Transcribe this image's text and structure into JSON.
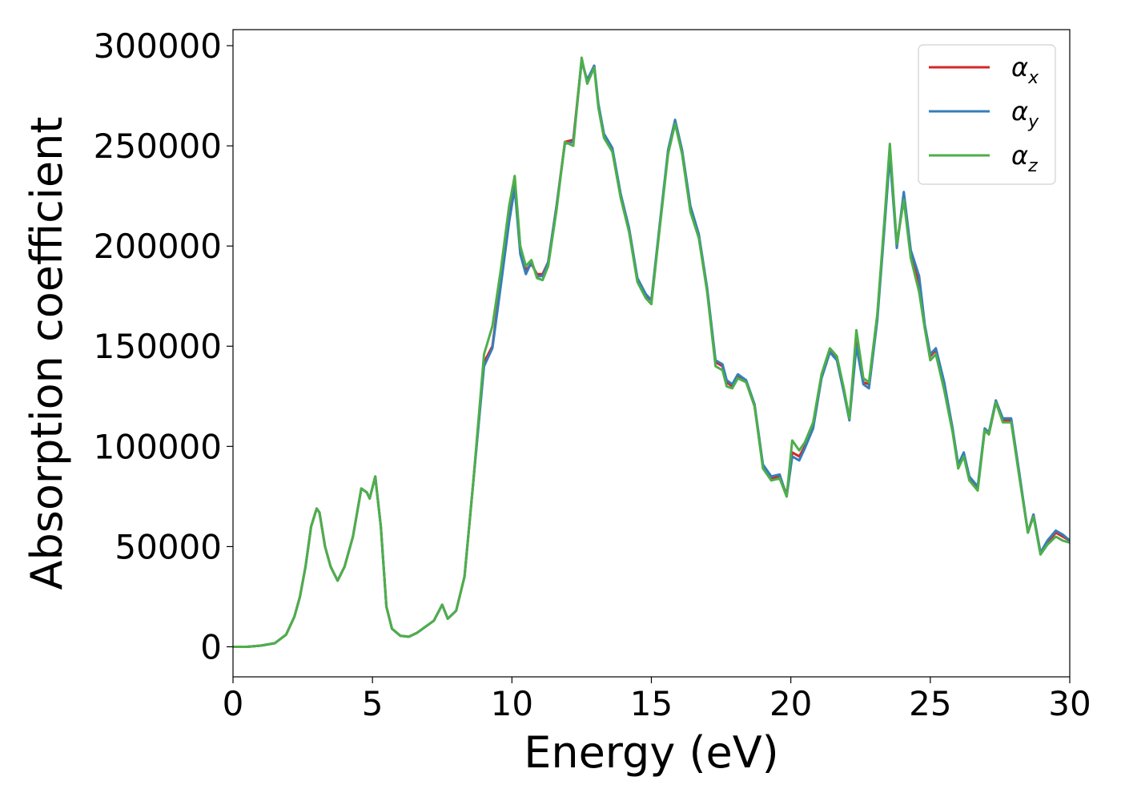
{
  "chart_data": {
    "type": "line",
    "xlabel": "Energy (eV)",
    "ylabel": "Absorption coefficient",
    "xlim": [
      0,
      30
    ],
    "ylim": [
      -15000,
      308000
    ],
    "xticks": [
      0,
      5,
      10,
      15,
      20,
      25,
      30
    ],
    "yticks": [
      0,
      50000,
      100000,
      150000,
      200000,
      250000,
      300000
    ],
    "grid": false,
    "legend_position": "top-right",
    "x": [
      0,
      0.5,
      1.0,
      1.5,
      1.9,
      2.2,
      2.4,
      2.6,
      2.8,
      3.0,
      3.1,
      3.3,
      3.5,
      3.75,
      4.0,
      4.3,
      4.6,
      4.8,
      4.9,
      5.1,
      5.3,
      5.5,
      5.7,
      6.0,
      6.3,
      6.6,
      6.9,
      7.2,
      7.5,
      7.7,
      8.0,
      8.3,
      8.6,
      9.0,
      9.3,
      9.6,
      9.9,
      10.1,
      10.3,
      10.5,
      10.7,
      10.9,
      11.1,
      11.3,
      11.6,
      11.9,
      12.2,
      12.5,
      12.7,
      12.95,
      13.1,
      13.3,
      13.6,
      13.9,
      14.2,
      14.5,
      14.8,
      15.0,
      15.3,
      15.6,
      15.85,
      16.1,
      16.4,
      16.7,
      17.0,
      17.3,
      17.55,
      17.7,
      17.9,
      18.1,
      18.4,
      18.7,
      19.0,
      19.3,
      19.6,
      19.85,
      20.05,
      20.3,
      20.5,
      20.8,
      21.1,
      21.4,
      21.65,
      21.9,
      22.1,
      22.35,
      22.6,
      22.8,
      23.1,
      23.35,
      23.55,
      23.8,
      24.05,
      24.3,
      24.6,
      24.8,
      25.0,
      25.2,
      25.5,
      25.8,
      26.0,
      26.2,
      26.4,
      26.7,
      26.95,
      27.1,
      27.35,
      27.6,
      27.9,
      28.2,
      28.5,
      28.7,
      28.95,
      29.2,
      29.5,
      29.75,
      30.0
    ],
    "series": [
      {
        "name": "α_x",
        "color": "#d62728",
        "values": [
          0,
          0,
          600,
          1800,
          6000,
          15000,
          25000,
          40000,
          60000,
          69000,
          67000,
          50000,
          40000,
          33000,
          40000,
          55000,
          79000,
          77000,
          74000,
          85000,
          60000,
          20000,
          9000,
          5500,
          5000,
          7000,
          10000,
          13000,
          21000,
          14000,
          18000,
          35000,
          80000,
          142000,
          150000,
          182000,
          215000,
          232000,
          198000,
          188000,
          191000,
          186000,
          186000,
          192000,
          220000,
          252000,
          253000,
          293000,
          282000,
          290000,
          270000,
          255000,
          248000,
          225000,
          208000,
          183000,
          175000,
          173000,
          210000,
          247000,
          262000,
          247000,
          218000,
          205000,
          178000,
          142000,
          140000,
          132000,
          130000,
          135000,
          132000,
          120000,
          90000,
          84000,
          85000,
          76000,
          97000,
          95000,
          100000,
          110000,
          135000,
          148000,
          144000,
          128000,
          114000,
          152000,
          132000,
          131000,
          165000,
          210000,
          248000,
          200000,
          225000,
          196000,
          182000,
          160000,
          145000,
          148000,
          130000,
          108000,
          90000,
          96000,
          84000,
          79000,
          108000,
          106000,
          122000,
          113000,
          113000,
          85000,
          57000,
          66000,
          47000,
          52000,
          57000,
          55000,
          53000
        ]
      },
      {
        "name": "α_y",
        "color": "#377eb8",
        "values": [
          0,
          0,
          600,
          1800,
          6000,
          15000,
          25000,
          40000,
          60000,
          69000,
          67000,
          50000,
          40000,
          33000,
          40000,
          55000,
          79000,
          77000,
          74000,
          85000,
          60000,
          20000,
          9000,
          5500,
          5000,
          7000,
          10000,
          13000,
          21000,
          14000,
          18000,
          35000,
          80000,
          140000,
          149000,
          180000,
          212000,
          229000,
          196000,
          186000,
          192000,
          185000,
          185000,
          192000,
          220000,
          251000,
          252000,
          292000,
          283000,
          290000,
          271000,
          256000,
          249000,
          226000,
          209000,
          184000,
          176000,
          173000,
          211000,
          248000,
          263000,
          248000,
          220000,
          206000,
          179000,
          143000,
          141000,
          133000,
          131000,
          136000,
          133000,
          121000,
          91000,
          85000,
          86000,
          75000,
          95000,
          93000,
          99000,
          109000,
          134000,
          147000,
          143000,
          127000,
          113000,
          150000,
          131000,
          129000,
          163000,
          208000,
          245000,
          199000,
          227000,
          198000,
          185000,
          161000,
          146000,
          149000,
          132000,
          109000,
          91000,
          97000,
          85000,
          80000,
          109000,
          107000,
          123000,
          114000,
          114000,
          86000,
          57000,
          66000,
          47000,
          53000,
          58000,
          56000,
          53000
        ]
      },
      {
        "name": "α_z",
        "color": "#4daf4a",
        "values": [
          0,
          0,
          600,
          1800,
          6000,
          15000,
          25000,
          40000,
          60000,
          69000,
          67000,
          50000,
          40000,
          33000,
          40000,
          55000,
          79000,
          77000,
          74000,
          85000,
          60000,
          20000,
          9000,
          5500,
          5000,
          7000,
          10000,
          13000,
          21000,
          14000,
          18000,
          35000,
          80000,
          146000,
          160000,
          188000,
          220000,
          235000,
          200000,
          190000,
          193000,
          184000,
          183000,
          190000,
          218000,
          252000,
          250000,
          294000,
          281000,
          289000,
          269000,
          254000,
          247000,
          224000,
          207000,
          182000,
          174000,
          171000,
          209000,
          246000,
          261000,
          246000,
          217000,
          204000,
          177000,
          140000,
          138000,
          130000,
          129000,
          134000,
          132000,
          120000,
          89000,
          83000,
          84000,
          75000,
          103000,
          98000,
          102000,
          112000,
          136000,
          149000,
          145000,
          129000,
          114000,
          158000,
          134000,
          132000,
          166000,
          212000,
          251000,
          201000,
          223000,
          194000,
          177000,
          159000,
          143000,
          146000,
          128000,
          107000,
          89000,
          95000,
          83000,
          78000,
          108000,
          106000,
          122000,
          112000,
          112000,
          84000,
          57000,
          65000,
          46000,
          51000,
          55000,
          53000,
          52000
        ]
      }
    ]
  }
}
